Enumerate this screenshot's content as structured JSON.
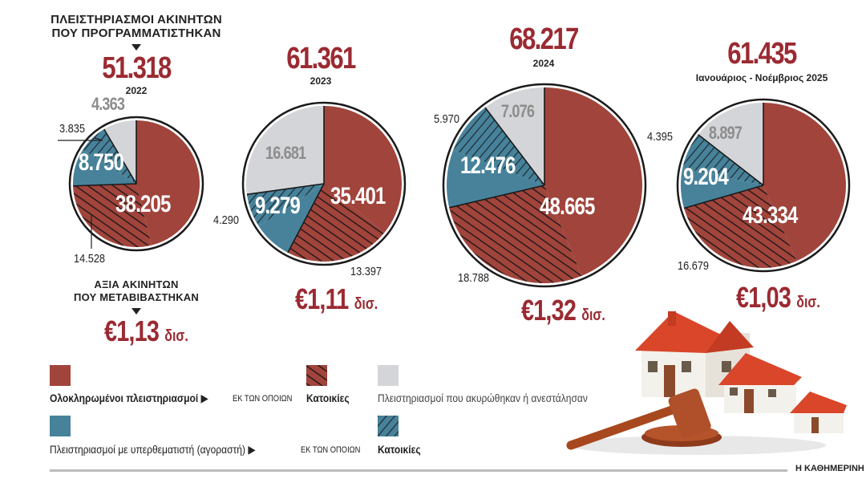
{
  "header": {
    "auctions_title_line1": "ΠΛΕΙΣΤΗΡΙΑΣΜΟΙ ΑΚΙΝΗΤΩΝ",
    "auctions_title_line2": "ΠΟΥ ΠΡΟΓΡΑΜΜΑΤΙΣΤΗΚΑΝ",
    "value_title_line1": "ΑΞΙΑ ΑΚΙΝΗΤΩΝ",
    "value_title_line2": "ΠΟΥ ΜΕΤΑΒΙΒΑΣΤΗΚΑΝ"
  },
  "colors": {
    "completed": "#a0443c",
    "with_bidder": "#47829a",
    "cancelled": "#d4d5d8",
    "accent": "#9b2a32"
  },
  "chart_data": {
    "type": "pie",
    "slice_order": "clockwise from 12 o'clock: completed, with bidder, cancelled/suspended",
    "pies": [
      {
        "period": "2022",
        "total": "51.318",
        "completed": 38205,
        "completed_label": "38.205",
        "completed_residential": 14528,
        "completed_residential_label": "14.528",
        "with_bidder": 8750,
        "with_bidder_label": "8.750",
        "with_bidder_residential": 3835,
        "with_bidder_residential_label": "3.835",
        "cancelled": 4363,
        "cancelled_label": "4.363",
        "value": "€1,13",
        "value_unit": "δισ."
      },
      {
        "period": "2023",
        "total": "61.361",
        "completed": 35401,
        "completed_label": "35.401",
        "completed_residential": 13397,
        "completed_residential_label": "13.397",
        "with_bidder": 9279,
        "with_bidder_label": "9.279",
        "with_bidder_residential": 4290,
        "with_bidder_residential_label": "4.290",
        "cancelled": 16681,
        "cancelled_label": "16.681",
        "value": "€1,11",
        "value_unit": "δισ."
      },
      {
        "period": "2024",
        "total": "68.217",
        "completed": 48665,
        "completed_label": "48.665",
        "completed_residential": 18788,
        "completed_residential_label": "18.788",
        "with_bidder": 12476,
        "with_bidder_label": "12.476",
        "with_bidder_residential": 5970,
        "with_bidder_residential_label": "5.970",
        "cancelled": 7076,
        "cancelled_label": "7.076",
        "value": "€1,32",
        "value_unit": "δισ."
      },
      {
        "period": "Ιανουάριος - Νοέμβριος 2025",
        "total": "61.435",
        "completed": 43334,
        "completed_label": "43.334",
        "completed_residential": 16679,
        "completed_residential_label": "16.679",
        "with_bidder": 9204,
        "with_bidder_label": "9.204",
        "with_bidder_residential": 4395,
        "with_bidder_residential_label": "4.395",
        "cancelled": 8897,
        "cancelled_label": "8.897",
        "value": "€1,03",
        "value_unit": "δισ."
      }
    ],
    "legend": {
      "completed": "Ολοκληρωμένοι πλειστηριασμοί",
      "of_which": "ΕΚ ΤΩΝ ΟΠΟΙΩΝ",
      "residential": "Κατοικίες",
      "cancelled": "Πλειστηριασμοί που ακυρώθηκαν ή ανεστάλησαν",
      "with_bidder": "Πλειστηριασμοί με υπερθεματιστή (αγοραστή)"
    }
  },
  "footer": {
    "source": "Η ΚΑΘΗΜΕΡΙΝΗ"
  }
}
